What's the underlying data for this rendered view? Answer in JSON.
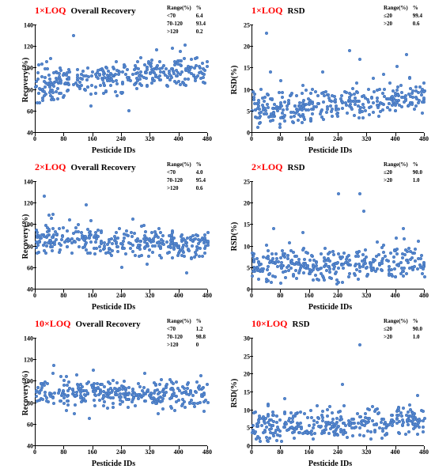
{
  "global": {
    "dot_color": "#5b8cd2",
    "dot_border": "#4678c0",
    "axis_color": "#000000",
    "x_label": "Pesticide IDs",
    "x_min": 0,
    "x_max": 480,
    "x_ticks": [
      0,
      80,
      160,
      240,
      320,
      400,
      480
    ]
  },
  "panels": [
    {
      "loq": "1×LOQ",
      "metric": "Overall Recovery",
      "y_label": "Recovery(%)",
      "y_min": 40,
      "y_max": 140,
      "y_ticks": [
        40,
        60,
        80,
        100,
        120,
        140
      ],
      "range_header": [
        "Range(%)",
        "%"
      ],
      "range_rows": [
        [
          "<70",
          "6.4"
        ],
        [
          "70-120",
          "93.4"
        ],
        [
          ">120",
          "0.2"
        ]
      ],
      "cloud": {
        "band_lo": 72,
        "band_hi": 92,
        "noise": 6,
        "trend_start": 82,
        "trend_end": 98,
        "outliers": [
          [
            105,
            130
          ],
          [
            260,
            60
          ],
          [
            380,
            118
          ],
          [
            50,
            95
          ]
        ]
      },
      "n": 340
    },
    {
      "loq": "1×LOQ",
      "metric": "RSD",
      "y_label": "RSD(%)",
      "y_min": 0,
      "y_max": 25,
      "y_ticks": [
        0,
        5,
        10,
        15,
        20,
        25
      ],
      "range_header": [
        "Range(%)",
        "%"
      ],
      "range_rows": [
        [
          "≤20",
          "99.4"
        ],
        [
          ">20",
          "0.6"
        ]
      ],
      "cloud": {
        "band_lo": 2,
        "band_hi": 7,
        "noise": 2,
        "trend_start": 5,
        "trend_end": 8,
        "outliers": [
          [
            40,
            23
          ],
          [
            50,
            14
          ],
          [
            270,
            19
          ],
          [
            300,
            17
          ],
          [
            430,
            18
          ],
          [
            80,
            12
          ]
        ]
      },
      "n": 340
    },
    {
      "loq": "2×LOQ",
      "metric": "Overall Recovery",
      "y_label": "Recovery(%)",
      "y_min": 40,
      "y_max": 140,
      "y_ticks": [
        40,
        60,
        80,
        100,
        120,
        140
      ],
      "range_header": [
        "Range(%)",
        "%"
      ],
      "range_rows": [
        [
          "<70",
          "4.0"
        ],
        [
          "70-120",
          "95.4"
        ],
        [
          ">120",
          "0.6"
        ]
      ],
      "cloud": {
        "band_lo": 74,
        "band_hi": 92,
        "noise": 6,
        "trend_start": 86,
        "trend_end": 80,
        "outliers": [
          [
            25,
            126
          ],
          [
            140,
            118
          ],
          [
            240,
            60
          ],
          [
            310,
            63
          ],
          [
            420,
            55
          ]
        ]
      },
      "n": 340
    },
    {
      "loq": "2×LOQ",
      "metric": "RSD",
      "y_label": "RSD(%)",
      "y_min": 0,
      "y_max": 25,
      "y_ticks": [
        0,
        5,
        10,
        15,
        20,
        25
      ],
      "range_header": [
        "Range(%)",
        "%"
      ],
      "range_rows": [
        [
          "≤20",
          "90.0"
        ],
        [
          ">20",
          "1.0"
        ]
      ],
      "cloud": {
        "band_lo": 2,
        "band_hi": 7,
        "noise": 2,
        "trend_start": 5,
        "trend_end": 6,
        "outliers": [
          [
            240,
            22
          ],
          [
            300,
            22
          ],
          [
            310,
            18
          ],
          [
            60,
            14
          ],
          [
            140,
            13
          ],
          [
            420,
            14
          ]
        ]
      },
      "n": 340
    },
    {
      "loq": "10×LOQ",
      "metric": "Overall Recovery",
      "y_label": "Recovery(%)",
      "y_min": 40,
      "y_max": 140,
      "y_ticks": [
        40,
        60,
        80,
        100,
        120,
        140
      ],
      "range_header": [
        "Range(%)",
        "%"
      ],
      "range_rows": [
        [
          "<70",
          "1.2"
        ],
        [
          "70-120",
          "98.8"
        ],
        [
          ">120",
          "0"
        ]
      ],
      "cloud": {
        "band_lo": 80,
        "band_hi": 96,
        "noise": 5,
        "trend_start": 88,
        "trend_end": 86,
        "outliers": [
          [
            50,
            114
          ],
          [
            160,
            110
          ],
          [
            150,
            65
          ],
          [
            460,
            105
          ]
        ]
      },
      "n": 340
    },
    {
      "loq": "10×LOQ",
      "metric": "RSD",
      "y_label": "RSD(%)",
      "y_min": 0,
      "y_max": 30,
      "y_ticks": [
        0,
        5,
        10,
        15,
        20,
        25,
        30
      ],
      "range_header": [
        "Range(%)",
        "%"
      ],
      "range_rows": [
        [
          "≤20",
          "90.0"
        ],
        [
          ">20",
          "1.0"
        ]
      ],
      "cloud": {
        "band_lo": 3,
        "band_hi": 8,
        "noise": 2,
        "trend_start": 5,
        "trend_end": 7,
        "outliers": [
          [
            300,
            28
          ],
          [
            250,
            17
          ],
          [
            255,
            11
          ],
          [
            460,
            14
          ],
          [
            90,
            13
          ]
        ]
      },
      "n": 340
    }
  ]
}
